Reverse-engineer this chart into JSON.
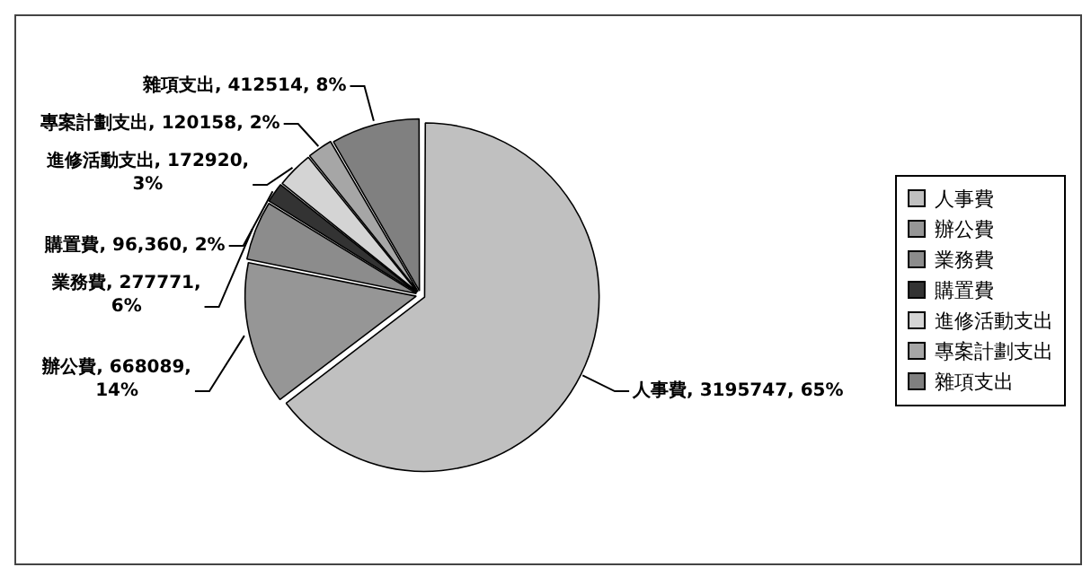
{
  "chart_data": {
    "type": "pie",
    "categories": [
      "人事費",
      "辦公費",
      "業務費",
      "購置費",
      "進修活動支出",
      "專案計劃支出",
      "雜項支出"
    ],
    "values": [
      3195747,
      668089,
      277771,
      96360,
      172920,
      120158,
      412514
    ],
    "colors": [
      "#c0c0c0",
      "#969696",
      "#8c8c8c",
      "#333333",
      "#d4d4d4",
      "#a6a6a6",
      "#808080"
    ],
    "value_labels": [
      "人事費, 3195747, 65%",
      "辦公費, 668089, 14%",
      "業務費, 277771, 6%",
      "購置費, 96,360, 2%",
      "進修活動支出, 172920, 3%",
      "專案計劃支出, 120158, 2%",
      "雜項支出, 412514, 8%"
    ],
    "legend": "right"
  }
}
